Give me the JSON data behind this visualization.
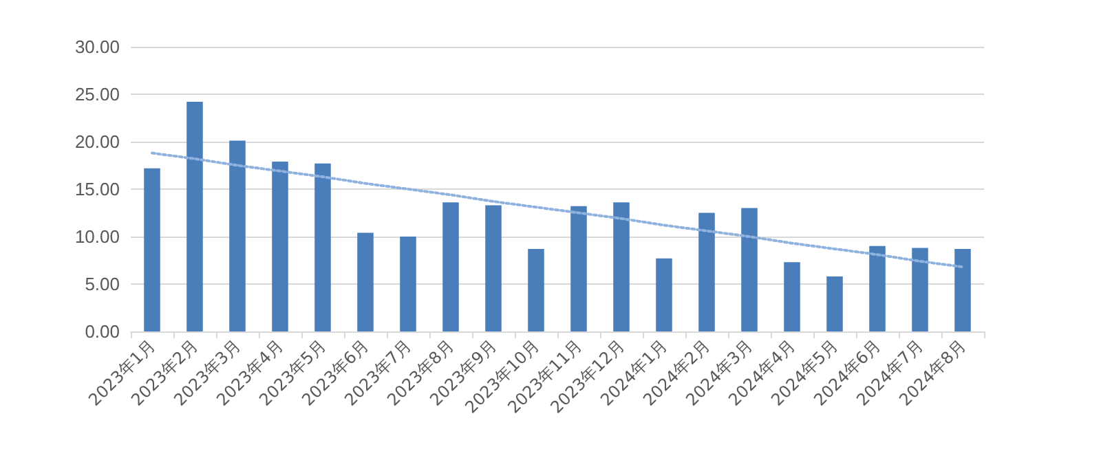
{
  "chart_data": {
    "type": "bar",
    "categories": [
      "2023年1月",
      "2023年2月",
      "2023年3月",
      "2023年4月",
      "2023年5月",
      "2023年6月",
      "2023年7月",
      "2023年8月",
      "2023年9月",
      "2023年10月",
      "2023年11月",
      "2023年12月",
      "2024年1月",
      "2024年2月",
      "2024年3月",
      "2024年4月",
      "2024年5月",
      "2024年6月",
      "2024年7月",
      "2024年8月"
    ],
    "series": [
      {
        "color": "#4a7ebb",
        "values": [
          17.2,
          24.2,
          20.1,
          17.9,
          17.7,
          10.4,
          10.0,
          13.6,
          13.3,
          8.7,
          13.2,
          13.6,
          7.7,
          12.5,
          13.0,
          7.3,
          5.8,
          9.0,
          8.8,
          8.7
        ]
      },
      {
        "type": "line",
        "color": "#8fb3de",
        "line_style": "dotted",
        "marker": "none",
        "values": [
          18.8,
          18.2,
          17.5,
          16.9,
          16.3,
          15.6,
          15.0,
          14.4,
          13.7,
          13.1,
          12.5,
          11.9,
          11.2,
          10.6,
          10.0,
          9.3,
          8.7,
          8.1,
          7.4,
          6.8
        ]
      }
    ],
    "ylim": [
      0,
      30
    ],
    "yticks": [
      {
        "value": 0,
        "label": "0.00"
      },
      {
        "value": 5,
        "label": "5.00"
      },
      {
        "value": 10,
        "label": "10.00"
      },
      {
        "value": 15,
        "label": "15.00"
      },
      {
        "value": 20,
        "label": "20.00"
      },
      {
        "value": 25,
        "label": "25.00"
      },
      {
        "value": 30,
        "label": "30.00"
      }
    ],
    "grid": "y"
  }
}
